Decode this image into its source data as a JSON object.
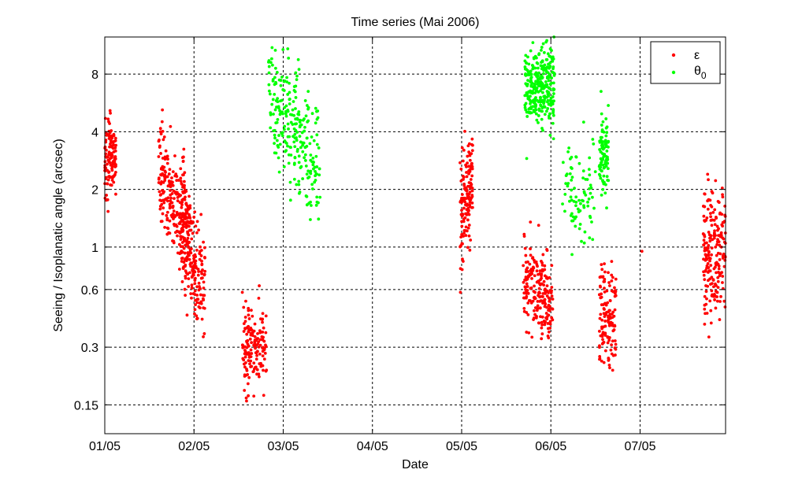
{
  "chart_data": {
    "type": "scatter",
    "title": "Time series (Mai 2006)",
    "xlabel": "Date",
    "ylabel": "Seeing / Isoplanatic angle (arcsec)",
    "x_scale": "date",
    "y_scale": "log2",
    "xlim": [
      "2006-05-01T00:00",
      "2006-05-07T23:00"
    ],
    "ylim": [
      0.106,
      12.5
    ],
    "x_ticks": [
      "01/05",
      "02/05",
      "03/05",
      "04/05",
      "05/05",
      "06/05",
      "07/05"
    ],
    "y_ticks": [
      0.15,
      0.3,
      0.6,
      1,
      2,
      4,
      8
    ],
    "y_tick_labels": [
      "0.15",
      "0.3",
      "0.6",
      "1",
      "2",
      "4",
      "8"
    ],
    "grid": true,
    "legend_position": "top-right",
    "series": [
      {
        "name": "ε",
        "color": "#ff0000",
        "clusters": [
          {
            "x_start": "2006-05-01T00:00",
            "x_end": "2006-05-01T03:00",
            "center": 2.8,
            "spread": 0.32,
            "count": 120,
            "extremes": [
              [
                "2006-05-01T00:10",
                4.7
              ],
              [
                "2006-05-01T01:30",
                5.0
              ],
              [
                "2006-05-01T00:05",
                1.8
              ]
            ]
          },
          {
            "x_start": "2006-05-01T14:30",
            "x_end": "2006-05-01T23:00",
            "center_start": 2.4,
            "center_end": 1.3,
            "spread": 0.45,
            "count": 230,
            "extremes": [
              [
                "2006-05-01T15:30",
                5.2
              ],
              [
                "2006-05-01T15:00",
                4.0
              ]
            ]
          },
          {
            "x_start": "2006-05-01T20:00",
            "x_end": "2006-05-02T03:00",
            "center_start": 1.1,
            "center_end": 0.62,
            "spread": 0.45,
            "count": 200,
            "extremes": [
              [
                "2006-05-02T02:30",
                0.34
              ]
            ]
          },
          {
            "x_start": "2006-05-02T13:00",
            "x_end": "2006-05-02T19:30",
            "center": 0.3,
            "spread": 0.35,
            "count": 150,
            "extremes": [
              [
                "2006-05-02T13:00",
                0.58
              ],
              [
                "2006-05-02T18:30",
                0.45
              ]
            ]
          },
          {
            "x_start": "2006-05-04T23:30",
            "x_end": "2006-05-05T03:00",
            "center_start": 1.4,
            "center_end": 2.2,
            "spread": 0.45,
            "count": 140,
            "extremes": [
              [
                "2006-05-04T23:40",
                0.58
              ],
              [
                "2006-05-05T00:10",
                3.3
              ]
            ]
          },
          {
            "x_start": "2006-05-05T16:30",
            "x_end": "2006-05-06T00:30",
            "center_start": 0.7,
            "center_end": 0.5,
            "spread": 0.35,
            "count": 200,
            "extremes": [
              [
                "2006-05-05T18:30",
                1.35
              ],
              [
                "2006-05-05T23:30",
                0.36
              ]
            ]
          },
          {
            "x_start": "2006-05-06T13:00",
            "x_end": "2006-05-06T17:30",
            "center": 0.42,
            "spread": 0.4,
            "count": 130,
            "extremes": [
              [
                "2006-05-06T13:30",
                0.7
              ]
            ]
          },
          {
            "x_start": "2006-05-07T17:00",
            "x_end": "2006-05-07T23:00",
            "center": 0.95,
            "spread": 0.55,
            "count": 200,
            "extremes": [
              [
                "2006-05-07T17:30",
                0.45
              ],
              [
                "2006-05-07T18:10",
                2.4
              ]
            ]
          }
        ],
        "isolated_points": [
          [
            "2006-05-07T00:30",
            0.95
          ]
        ]
      },
      {
        "name": "θ0",
        "color": "#00ff00",
        "clusters": [
          {
            "x_start": "2006-05-02T20:00",
            "x_end": "2006-05-03T10:00",
            "center_start": 7.0,
            "center_end": 2.7,
            "spread": 0.5,
            "count": 250,
            "extremes": [
              [
                "2006-05-02T21:00",
                11.0
              ],
              [
                "2006-05-03T09:30",
                1.4
              ]
            ]
          },
          {
            "x_start": "2006-05-05T17:00",
            "x_end": "2006-05-06T01:00",
            "center": 7.0,
            "spread": 0.35,
            "count": 300,
            "extremes": [
              [
                "2006-05-05T17:30",
                2.9
              ],
              [
                "2006-05-06T00:50",
                12.5
              ]
            ]
          },
          {
            "x_start": "2006-05-06T03:00",
            "x_end": "2006-05-06T12:00",
            "center": 1.9,
            "spread": 0.45,
            "count": 80,
            "extremes": [
              [
                "2006-05-06T09:00",
                1.05
              ]
            ]
          },
          {
            "x_start": "2006-05-06T13:00",
            "x_end": "2006-05-06T15:30",
            "center": 3.0,
            "spread": 0.35,
            "count": 90,
            "extremes": [
              [
                "2006-05-06T13:30",
                6.5
              ],
              [
                "2006-05-06T15:00",
                1.6
              ]
            ]
          }
        ]
      }
    ]
  }
}
